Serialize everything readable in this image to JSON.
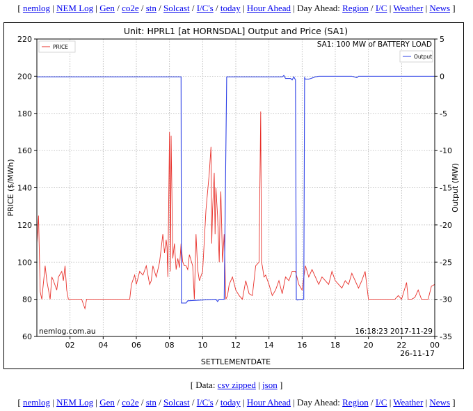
{
  "nav": {
    "items": [
      {
        "label": "nemlog",
        "link": true
      },
      {
        "label": "NEM Log",
        "link": true
      },
      {
        "label": "Gen",
        "link": true
      },
      {
        "label": "co2e",
        "link": true
      },
      {
        "label": "stn",
        "link": true
      },
      {
        "label": "Solcast",
        "link": true
      },
      {
        "label": "I/C's",
        "link": true
      },
      {
        "label": "today",
        "link": true
      },
      {
        "label": "Hour Ahead",
        "link": true
      },
      {
        "label": "Day Ahead:",
        "link": false
      },
      {
        "label": "Region",
        "link": true
      },
      {
        "label": "I/C",
        "link": true
      },
      {
        "label": "Weather",
        "link": true
      },
      {
        "label": "News",
        "link": true
      }
    ]
  },
  "data_links": {
    "prefix": "[ Data: ",
    "csv_label": "csv zipped",
    "json_label": "json",
    "suffix": " ]"
  },
  "chart_data": {
    "type": "line",
    "title": "Unit: HPRL1 [at HORNSDAL] Output and Price (SA1)",
    "subtitle": "SA1: 100 MW of BATTERY LOAD",
    "xlabel": "SETTLEMENTDATE",
    "ylabel": "PRICE ($/MWh)",
    "y2label": "Output (MW)",
    "xticks": [
      "02",
      "04",
      "06",
      "08",
      "10",
      "12",
      "14",
      "16",
      "18",
      "20",
      "22",
      "00"
    ],
    "xticks_hours": [
      2,
      4,
      6,
      8,
      10,
      12,
      14,
      16,
      18,
      20,
      22,
      24
    ],
    "x_range_hours": [
      0,
      24
    ],
    "date_label": "26-11-17",
    "ylim": [
      60,
      220
    ],
    "yticks": [
      60,
      80,
      100,
      120,
      140,
      160,
      180,
      200,
      220
    ],
    "y2lim": [
      -35,
      5
    ],
    "y2ticks": [
      -35,
      -30,
      -25,
      -20,
      -15,
      -10,
      -5,
      0,
      5
    ],
    "grid": true,
    "watermark": "nemlog.com.au",
    "timestamp": "16:18:23 2017-11-29",
    "colors": {
      "price": "#e8302a",
      "output": "#2b3fe6"
    },
    "series": [
      {
        "name": "PRICE",
        "axis": "left",
        "legend_position": "upper left",
        "x_hours": [
          0.0,
          0.1,
          0.2,
          0.3,
          0.5,
          0.6,
          0.8,
          0.9,
          1.0,
          1.2,
          1.3,
          1.5,
          1.6,
          1.7,
          1.8,
          1.9,
          2.0,
          2.1,
          2.3,
          2.5,
          2.7,
          2.9,
          3.0,
          3.1,
          3.2,
          4.0,
          5.0,
          5.6,
          5.7,
          5.9,
          6.0,
          6.2,
          6.4,
          6.6,
          6.8,
          6.9,
          7.0,
          7.2,
          7.4,
          7.6,
          7.7,
          7.8,
          7.85,
          7.9,
          8.0,
          8.05,
          8.1,
          8.2,
          8.3,
          8.4,
          8.5,
          8.6,
          8.7,
          8.8,
          8.9,
          9.0,
          9.1,
          9.2,
          9.4,
          9.5,
          9.6,
          9.7,
          9.8,
          10.0,
          10.2,
          10.4,
          10.5,
          10.55,
          10.6,
          10.7,
          10.75,
          10.8,
          10.9,
          11.0,
          11.05,
          11.1,
          11.2,
          11.3,
          11.4,
          11.5,
          11.6,
          11.8,
          12.0,
          12.2,
          12.4,
          12.6,
          12.8,
          13.0,
          13.2,
          13.4,
          13.5,
          13.55,
          13.6,
          13.7,
          13.8,
          14.0,
          14.2,
          14.4,
          14.6,
          14.8,
          15.0,
          15.2,
          15.4,
          15.6,
          15.8,
          16.0,
          16.2,
          16.4,
          16.6,
          16.8,
          17.0,
          17.2,
          17.4,
          17.6,
          17.8,
          18.0,
          18.2,
          18.4,
          18.6,
          18.8,
          19.0,
          19.2,
          19.4,
          19.6,
          19.8,
          20.0,
          20.4,
          21.0,
          21.6,
          21.8,
          22.0,
          22.3,
          22.4,
          22.6,
          22.8,
          23.0,
          23.2,
          23.4,
          23.6,
          23.8,
          24.0
        ],
        "values": [
          110,
          125,
          84,
          80,
          98,
          90,
          80,
          92,
          90,
          85,
          92,
          95,
          90,
          98,
          85,
          80,
          80,
          80,
          80,
          80,
          80,
          75,
          80,
          80,
          80,
          80,
          80,
          80,
          88,
          93,
          88,
          95,
          93,
          98,
          88,
          90,
          98,
          92,
          100,
          115,
          105,
          112,
          108,
          92,
          170,
          95,
          168,
          102,
          110,
          96,
          102,
          97,
          110,
          100,
          98,
          98,
          96,
          104,
          98,
          80,
          115,
          96,
          90,
          95,
          128,
          148,
          162,
          110,
          128,
          148,
          115,
          140,
          125,
          100,
          128,
          138,
          100,
          115,
          80,
          82,
          88,
          92,
          85,
          82,
          80,
          90,
          83,
          82,
          98,
          100,
          181,
          100,
          98,
          92,
          93,
          88,
          82,
          85,
          90,
          83,
          92,
          90,
          95,
          95,
          88,
          85,
          98,
          92,
          96,
          92,
          88,
          92,
          90,
          88,
          95,
          90,
          88,
          86,
          90,
          88,
          94,
          90,
          86,
          90,
          95,
          80,
          80,
          80,
          80,
          82,
          80,
          89,
          80,
          80,
          81,
          85,
          80,
          80,
          80,
          87,
          88
        ]
      },
      {
        "name": "Output",
        "axis": "right",
        "legend_position": "upper right",
        "x_hours": [
          0.0,
          8.7,
          8.72,
          9.0,
          9.1,
          10.8,
          10.9,
          11.0,
          11.3,
          11.45,
          14.8,
          14.9,
          15.0,
          15.3,
          15.4,
          15.5,
          15.6,
          15.65,
          15.7,
          16.0,
          16.1,
          16.15,
          16.2,
          16.4,
          16.8,
          17.0,
          19.0,
          19.3,
          19.4,
          20.0,
          24.0
        ],
        "values": [
          -0.1,
          -0.1,
          -30.5,
          -30.5,
          -30.2,
          -30,
          -30.3,
          -30,
          -30,
          -0.1,
          -0.1,
          0.1,
          -0.3,
          -0.3,
          -0.5,
          -0.1,
          -0.5,
          -30,
          -30.1,
          -30,
          -30,
          -0.2,
          -0.4,
          -0.4,
          -0.1,
          0.0,
          0.0,
          -0.2,
          0.0,
          0.0,
          0.0
        ]
      }
    ]
  }
}
